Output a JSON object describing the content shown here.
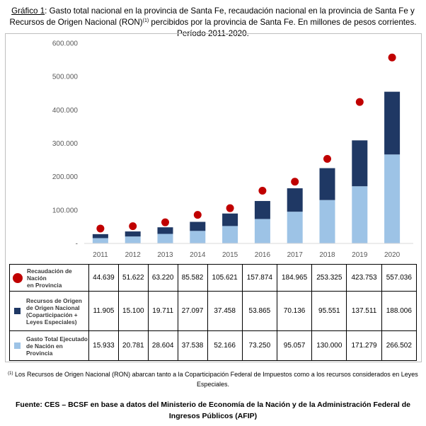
{
  "caption": {
    "label": "Gráfico 1",
    "text_a": ": Gasto total nacional en la provincia de Santa Fe, recaudación nacional en la provincia de Santa Fe y Recursos de Origen Nacional (RON)",
    "sup": "(1)",
    "text_b": " percibidos por la provincia de Santa Fe. En millones de pesos corrientes. Período 2011-2020."
  },
  "chart_data": {
    "type": "bar",
    "subtype": "stacked bar with dot overlay",
    "categories": [
      "2011",
      "2012",
      "2013",
      "2014",
      "2015",
      "2016",
      "2017",
      "2018",
      "2019",
      "2020"
    ],
    "y_ticks": [
      "600.000",
      "500.000",
      "400.000",
      "300.000",
      "200.000",
      "100.000",
      "-"
    ],
    "ylim": [
      0,
      600000
    ],
    "grid": false,
    "series": [
      {
        "name": "Gasto Total Ejecutado de Nación en Provincia",
        "kind": "bar-bottom",
        "color": "#9dc3e6",
        "values": [
          15933,
          20781,
          28604,
          37538,
          52166,
          73250,
          95057,
          130000,
          171279,
          266502
        ],
        "labels": [
          "15.933",
          "20.781",
          "28.604",
          "37.538",
          "52.166",
          "73.250",
          "95.057",
          "130.000",
          "171.279",
          "266.502"
        ]
      },
      {
        "name": "Recursos de Origen Nacional (Coparticipación + Leyes Especiales)",
        "kind": "bar-top",
        "color": "#1f3864",
        "values": [
          11905,
          15100,
          19711,
          27097,
          37458,
          53865,
          70136,
          95551,
          137511,
          188006
        ],
        "labels": [
          "11.905",
          "15.100",
          "19.711",
          "27.097",
          "37.458",
          "53.865",
          "70.136",
          "95.551",
          "137.511",
          "188.006"
        ]
      },
      {
        "name": "Recaudación de Nación en Provincia",
        "kind": "dot",
        "color": "#c00000",
        "values": [
          44639,
          51622,
          63220,
          85582,
          105621,
          157874,
          184965,
          253325,
          423753,
          557036
        ],
        "labels": [
          "44.639",
          "51.622",
          "63.220",
          "85.582",
          "105.621",
          "157.874",
          "184.965",
          "253.325",
          "423.753",
          "557.036"
        ]
      }
    ]
  },
  "table": {
    "row_labels": {
      "dot": [
        "Recaudación de Nación",
        "en Provincia"
      ],
      "dark": [
        "Recursos de Origen",
        "de Origen Nacional",
        "(Coparticipación +",
        "Leyes Especiales)"
      ],
      "light": [
        "Gasto Total Ejecutado",
        "de Nación en Provincia"
      ]
    }
  },
  "footnote": {
    "sup": "(1)",
    "text": " Los Recursos de Origen Nacional (RON) abarcan tanto a la Coparticipación Federal de Impuestos como a los recursos considerados en Leyes Especiales."
  },
  "source": "Fuente: CES – BCSF en base a datos del Ministerio de Economía de la Nación y de la Administración Federal de Ingresos Públicos (AFIP)"
}
